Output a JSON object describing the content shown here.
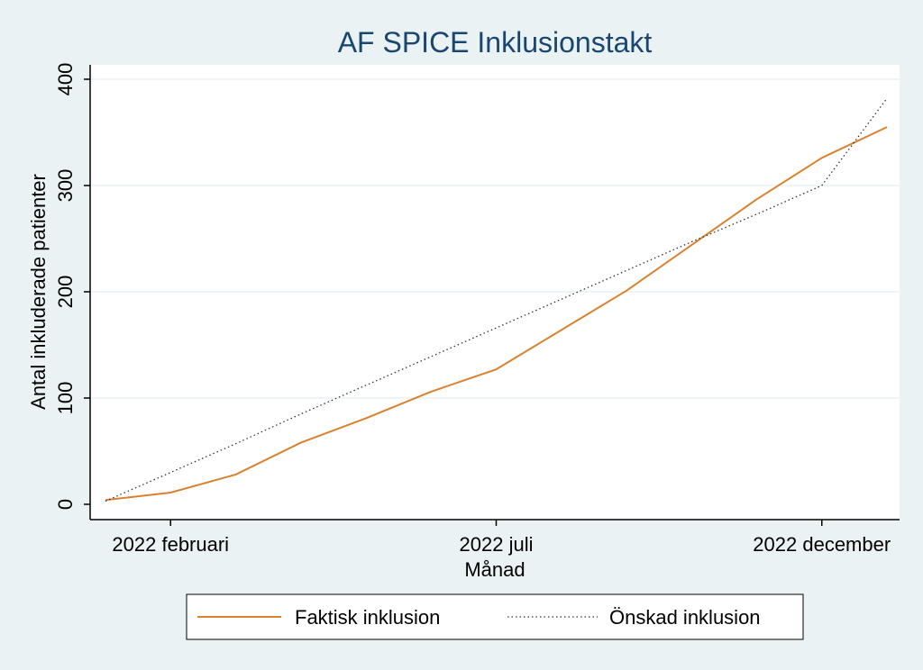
{
  "chart_data": {
    "type": "line",
    "title": "AF SPICE Inklusionstakt",
    "xlabel": "Månad",
    "ylabel": "Antal inkluderade patienter",
    "ylim": [
      0,
      400
    ],
    "yticks": [
      0,
      100,
      200,
      300,
      400
    ],
    "x": [
      "2022-01",
      "2022-02",
      "2022-03",
      "2022-04",
      "2022-05",
      "2022-06",
      "2022-07",
      "2022-08",
      "2022-09",
      "2022-10",
      "2022-11",
      "2022-12",
      "2023-01"
    ],
    "xticks": [
      {
        "x": "2022-02",
        "label": "2022 februari"
      },
      {
        "x": "2022-07",
        "label": "2022 juli"
      },
      {
        "x": "2022-12",
        "label": "2022 december"
      }
    ],
    "grid": true,
    "legend_position": "bottom",
    "series": [
      {
        "name": "Faktisk inklusion",
        "style": "solid",
        "color": "#d8822f",
        "x": [
          "2022-01",
          "2022-02",
          "2022-03",
          "2022-04",
          "2022-05",
          "2022-06",
          "2022-07",
          "2022-08",
          "2022-09",
          "2022-10",
          "2022-11",
          "2022-12",
          "2023-01"
        ],
        "values": [
          4,
          11,
          28,
          58,
          81,
          106,
          127,
          164,
          201,
          244,
          287,
          326,
          355
        ]
      },
      {
        "name": "Önskad inklusion",
        "style": "dotted",
        "color": "#333333",
        "x": [
          "2022-01",
          "2022-02",
          "2022-03",
          "2022-04",
          "2022-05",
          "2022-06",
          "2022-07",
          "2022-08",
          "2022-09",
          "2022-10",
          "2022-11",
          "2022-12",
          "2023-01"
        ],
        "values": [
          3,
          30,
          57,
          85,
          112,
          139,
          166,
          193,
          220,
          247,
          273,
          300,
          382
        ]
      }
    ]
  }
}
